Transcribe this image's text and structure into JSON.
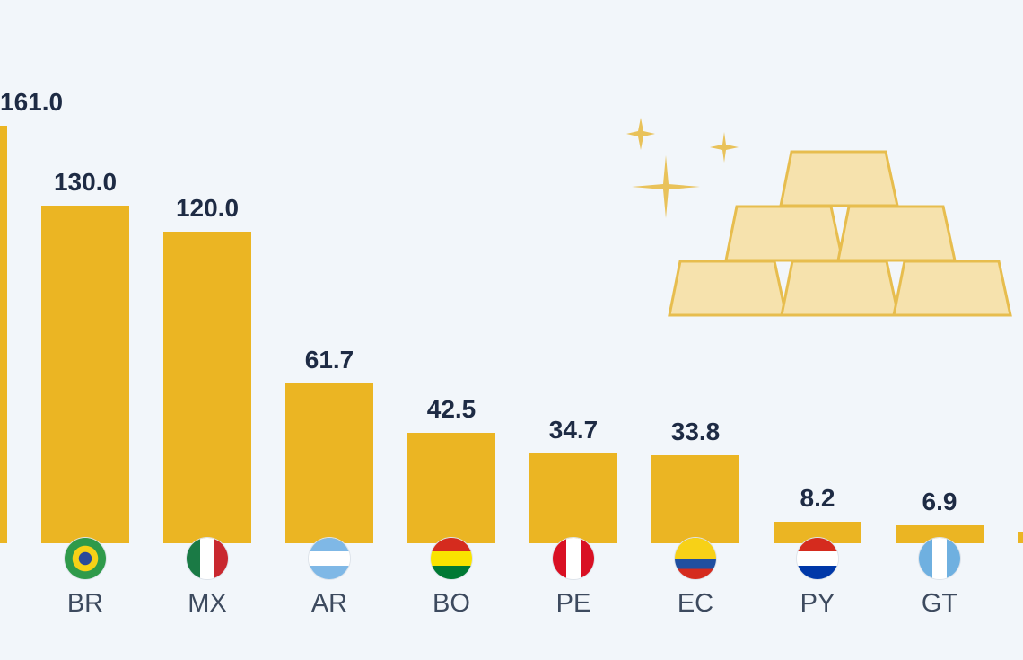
{
  "chart_data": {
    "type": "bar",
    "title": "",
    "xlabel": "",
    "ylabel": "",
    "ylim": [
      0,
      175
    ],
    "categories": [
      "",
      "BR",
      "MX",
      "AR",
      "BO",
      "PE",
      "EC",
      "PY",
      "GT",
      ""
    ],
    "values": [
      161.0,
      130.0,
      120.0,
      61.7,
      42.5,
      34.7,
      33.8,
      8.2,
      6.9,
      4.0
    ],
    "labels": [
      "161.0",
      "130.0",
      "120.0",
      "61.7",
      "42.5",
      "34.7",
      "33.8",
      "8.2",
      "6.9",
      ""
    ],
    "bar_color": "#ebb523",
    "grid": false,
    "decoration": "gold-bars-illustration"
  }
}
